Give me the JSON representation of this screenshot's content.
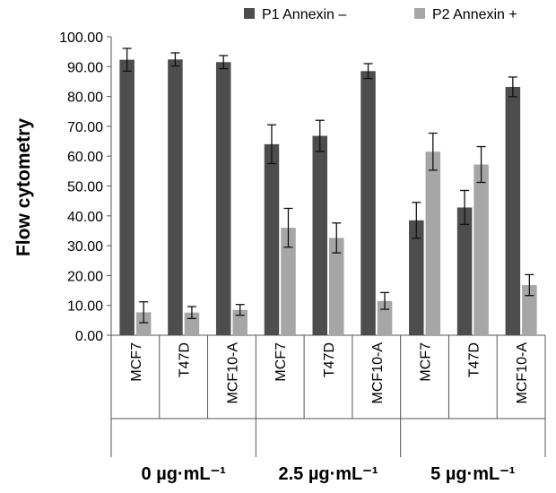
{
  "chart_data": {
    "type": "bar",
    "ylabel": "Flow cytometry",
    "ylim": [
      0,
      100
    ],
    "y_ticks": [
      "0.00",
      "10.00",
      "20.00",
      "30.00",
      "40.00",
      "50.00",
      "60.00",
      "70.00",
      "80.00",
      "90.00",
      "100.00"
    ],
    "categories": [
      "MCF7",
      "T47D",
      "MCF10-A",
      "MCF7",
      "T47D",
      "MCF10-A",
      "MCF7",
      "T47D",
      "MCF10-A"
    ],
    "groups": [
      {
        "label": "0 µg·mL⁻¹",
        "span": [
          0,
          2
        ]
      },
      {
        "label": "2.5 µg·mL⁻¹",
        "span": [
          3,
          5
        ]
      },
      {
        "label": "5 µg·mL⁻¹",
        "span": [
          6,
          8
        ]
      }
    ],
    "series": [
      {
        "name": "P1 Annexin –",
        "color": "#4d4d4d",
        "values": [
          92.3,
          92.4,
          91.5,
          64.0,
          66.8,
          88.5,
          38.5,
          42.8,
          83.2
        ],
        "errors": [
          3.8,
          2.2,
          2.2,
          6.5,
          5.2,
          2.5,
          6.0,
          5.7,
          3.3
        ]
      },
      {
        "name": "P2 Annexin +",
        "color": "#a6a6a6",
        "values": [
          7.7,
          7.6,
          8.5,
          36.0,
          32.6,
          11.5,
          61.5,
          57.2,
          16.8
        ],
        "errors": [
          3.5,
          2.0,
          1.8,
          6.5,
          5.0,
          2.8,
          6.2,
          6.0,
          3.5
        ]
      }
    ],
    "grid": false,
    "legend_position": "top"
  }
}
